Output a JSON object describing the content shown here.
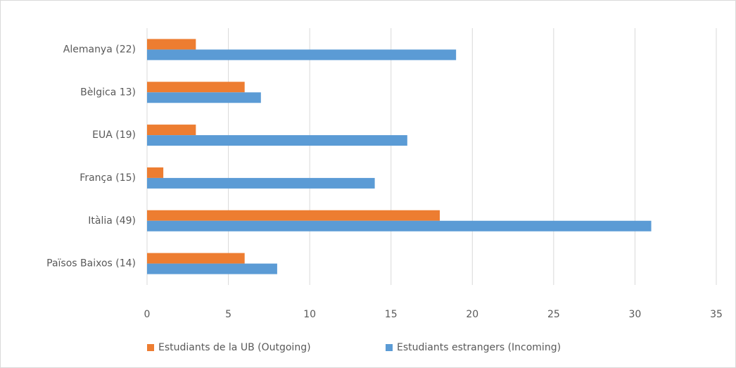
{
  "chart_data": {
    "type": "bar",
    "categories": [
      "Alemanya (22)",
      "Bèlgica 13)",
      "EUA (19)",
      "França (15)",
      "Itàlia (49)",
      "Països Baixos (14)"
    ],
    "series": [
      {
        "name": "Estudiants de la UB (Outgoing)",
        "color": "#ed7d31",
        "values": [
          3,
          6,
          3,
          1,
          18,
          6
        ]
      },
      {
        "name": "Estudiants estrangers (Incoming)",
        "color": "#5b9bd5",
        "values": [
          19,
          7,
          16,
          14,
          31,
          8
        ]
      }
    ],
    "xlim": [
      0,
      35
    ],
    "xticks": [
      0,
      5,
      10,
      15,
      20,
      25,
      30,
      35
    ],
    "grid": true,
    "legend": "bottom"
  }
}
